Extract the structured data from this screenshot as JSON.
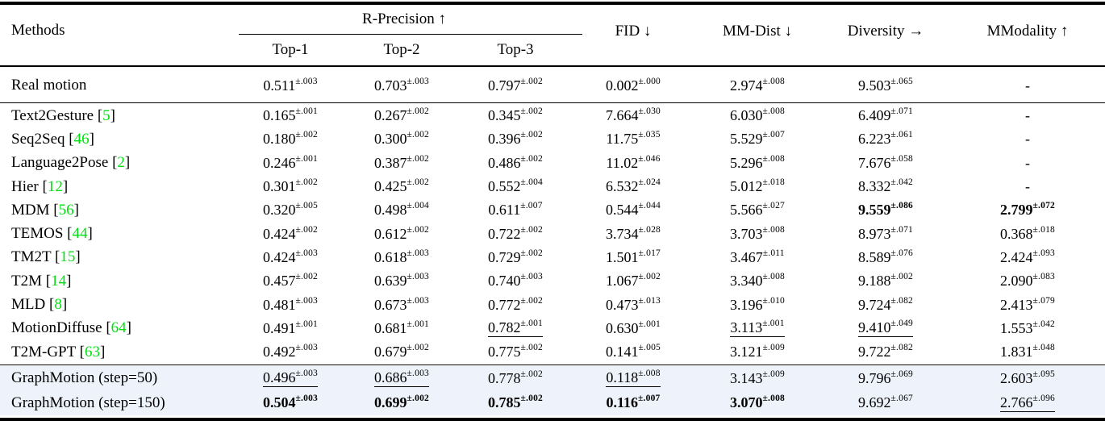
{
  "table": {
    "highlight_bg": "#eef2fa",
    "ref_color": "#00e010",
    "header": {
      "methods_label": "Methods",
      "group_label": "R-Precision ↑",
      "sub_labels": [
        "Top-1",
        "Top-2",
        "Top-3"
      ],
      "metric_labels": [
        "FID ↓",
        "MM-Dist ↓",
        "Diversity →",
        "MModality ↑"
      ]
    },
    "rows": [
      {
        "section": "real",
        "method": "Real motion",
        "ref": null,
        "cells": [
          {
            "v": "0.511",
            "e": "±.003",
            "s": "n"
          },
          {
            "v": "0.703",
            "e": "±.003",
            "s": "n"
          },
          {
            "v": "0.797",
            "e": "±.002",
            "s": "n"
          },
          {
            "v": "0.002",
            "e": "±.000",
            "s": "n"
          },
          {
            "v": "2.974",
            "e": "±.008",
            "s": "n"
          },
          {
            "v": "9.503",
            "e": "±.065",
            "s": "n"
          },
          {
            "v": "-",
            "e": "",
            "s": "n"
          }
        ]
      },
      {
        "section": "baselines",
        "method": "Text2Gesture",
        "ref": "5",
        "cells": [
          {
            "v": "0.165",
            "e": "±.001",
            "s": "n"
          },
          {
            "v": "0.267",
            "e": "±.002",
            "s": "n"
          },
          {
            "v": "0.345",
            "e": "±.002",
            "s": "n"
          },
          {
            "v": "7.664",
            "e": "±.030",
            "s": "n"
          },
          {
            "v": "6.030",
            "e": "±.008",
            "s": "n"
          },
          {
            "v": "6.409",
            "e": "±.071",
            "s": "n"
          },
          {
            "v": "-",
            "e": "",
            "s": "n"
          }
        ]
      },
      {
        "section": "baselines",
        "method": "Seq2Seq",
        "ref": "46",
        "cells": [
          {
            "v": "0.180",
            "e": "±.002",
            "s": "n"
          },
          {
            "v": "0.300",
            "e": "±.002",
            "s": "n"
          },
          {
            "v": "0.396",
            "e": "±.002",
            "s": "n"
          },
          {
            "v": "11.75",
            "e": "±.035",
            "s": "n"
          },
          {
            "v": "5.529",
            "e": "±.007",
            "s": "n"
          },
          {
            "v": "6.223",
            "e": "±.061",
            "s": "n"
          },
          {
            "v": "-",
            "e": "",
            "s": "n"
          }
        ]
      },
      {
        "section": "baselines",
        "method": "Language2Pose",
        "ref": "2",
        "cells": [
          {
            "v": "0.246",
            "e": "±.001",
            "s": "n"
          },
          {
            "v": "0.387",
            "e": "±.002",
            "s": "n"
          },
          {
            "v": "0.486",
            "e": "±.002",
            "s": "n"
          },
          {
            "v": "11.02",
            "e": "±.046",
            "s": "n"
          },
          {
            "v": "5.296",
            "e": "±.008",
            "s": "n"
          },
          {
            "v": "7.676",
            "e": "±.058",
            "s": "n"
          },
          {
            "v": "-",
            "e": "",
            "s": "n"
          }
        ]
      },
      {
        "section": "baselines",
        "method": "Hier",
        "ref": "12",
        "cells": [
          {
            "v": "0.301",
            "e": "±.002",
            "s": "n"
          },
          {
            "v": "0.425",
            "e": "±.002",
            "s": "n"
          },
          {
            "v": "0.552",
            "e": "±.004",
            "s": "n"
          },
          {
            "v": "6.532",
            "e": "±.024",
            "s": "n"
          },
          {
            "v": "5.012",
            "e": "±.018",
            "s": "n"
          },
          {
            "v": "8.332",
            "e": "±.042",
            "s": "n"
          },
          {
            "v": "-",
            "e": "",
            "s": "n"
          }
        ]
      },
      {
        "section": "baselines",
        "method": "MDM",
        "ref": "56",
        "cells": [
          {
            "v": "0.320",
            "e": "±.005",
            "s": "n"
          },
          {
            "v": "0.498",
            "e": "±.004",
            "s": "n"
          },
          {
            "v": "0.611",
            "e": "±.007",
            "s": "n"
          },
          {
            "v": "0.544",
            "e": "±.044",
            "s": "n"
          },
          {
            "v": "5.566",
            "e": "±.027",
            "s": "n"
          },
          {
            "v": "9.559",
            "e": "±.086",
            "s": "b"
          },
          {
            "v": "2.799",
            "e": "±.072",
            "s": "b"
          }
        ]
      },
      {
        "section": "baselines",
        "method": "TEMOS",
        "ref": "44",
        "cells": [
          {
            "v": "0.424",
            "e": "±.002",
            "s": "n"
          },
          {
            "v": "0.612",
            "e": "±.002",
            "s": "n"
          },
          {
            "v": "0.722",
            "e": "±.002",
            "s": "n"
          },
          {
            "v": "3.734",
            "e": "±.028",
            "s": "n"
          },
          {
            "v": "3.703",
            "e": "±.008",
            "s": "n"
          },
          {
            "v": "8.973",
            "e": "±.071",
            "s": "n"
          },
          {
            "v": "0.368",
            "e": "±.018",
            "s": "n"
          }
        ]
      },
      {
        "section": "baselines",
        "method": "TM2T",
        "ref": "15",
        "cells": [
          {
            "v": "0.424",
            "e": "±.003",
            "s": "n"
          },
          {
            "v": "0.618",
            "e": "±.003",
            "s": "n"
          },
          {
            "v": "0.729",
            "e": "±.002",
            "s": "n"
          },
          {
            "v": "1.501",
            "e": "±.017",
            "s": "n"
          },
          {
            "v": "3.467",
            "e": "±.011",
            "s": "n"
          },
          {
            "v": "8.589",
            "e": "±.076",
            "s": "n"
          },
          {
            "v": "2.424",
            "e": "±.093",
            "s": "n"
          }
        ]
      },
      {
        "section": "baselines",
        "method": "T2M",
        "ref": "14",
        "cells": [
          {
            "v": "0.457",
            "e": "±.002",
            "s": "n"
          },
          {
            "v": "0.639",
            "e": "±.003",
            "s": "n"
          },
          {
            "v": "0.740",
            "e": "±.003",
            "s": "n"
          },
          {
            "v": "1.067",
            "e": "±.002",
            "s": "n"
          },
          {
            "v": "3.340",
            "e": "±.008",
            "s": "n"
          },
          {
            "v": "9.188",
            "e": "±.002",
            "s": "n"
          },
          {
            "v": "2.090",
            "e": "±.083",
            "s": "n"
          }
        ]
      },
      {
        "section": "baselines",
        "method": "MLD",
        "ref": "8",
        "cells": [
          {
            "v": "0.481",
            "e": "±.003",
            "s": "n"
          },
          {
            "v": "0.673",
            "e": "±.003",
            "s": "n"
          },
          {
            "v": "0.772",
            "e": "±.002",
            "s": "n"
          },
          {
            "v": "0.473",
            "e": "±.013",
            "s": "n"
          },
          {
            "v": "3.196",
            "e": "±.010",
            "s": "n"
          },
          {
            "v": "9.724",
            "e": "±.082",
            "s": "n"
          },
          {
            "v": "2.413",
            "e": "±.079",
            "s": "n"
          }
        ]
      },
      {
        "section": "baselines",
        "method": "MotionDiffuse",
        "ref": "64",
        "cells": [
          {
            "v": "0.491",
            "e": "±.001",
            "s": "n"
          },
          {
            "v": "0.681",
            "e": "±.001",
            "s": "n"
          },
          {
            "v": "0.782",
            "e": "±.001",
            "s": "u"
          },
          {
            "v": "0.630",
            "e": "±.001",
            "s": "n"
          },
          {
            "v": "3.113",
            "e": "±.001",
            "s": "u"
          },
          {
            "v": "9.410",
            "e": "±.049",
            "s": "u"
          },
          {
            "v": "1.553",
            "e": "±.042",
            "s": "n"
          }
        ]
      },
      {
        "section": "baselines",
        "method": "T2M-GPT",
        "ref": "63",
        "cells": [
          {
            "v": "0.492",
            "e": "±.003",
            "s": "n"
          },
          {
            "v": "0.679",
            "e": "±.002",
            "s": "n"
          },
          {
            "v": "0.775",
            "e": "±.002",
            "s": "n"
          },
          {
            "v": "0.141",
            "e": "±.005",
            "s": "n"
          },
          {
            "v": "3.121",
            "e": "±.009",
            "s": "n"
          },
          {
            "v": "9.722",
            "e": "±.082",
            "s": "n"
          },
          {
            "v": "1.831",
            "e": "±.048",
            "s": "n"
          }
        ]
      },
      {
        "section": "ours",
        "method": "GraphMotion (step=50)",
        "ref": null,
        "cells": [
          {
            "v": "0.496",
            "e": "±.003",
            "s": "u"
          },
          {
            "v": "0.686",
            "e": "±.003",
            "s": "u"
          },
          {
            "v": "0.778",
            "e": "±.002",
            "s": "n"
          },
          {
            "v": "0.118",
            "e": "±.008",
            "s": "u"
          },
          {
            "v": "3.143",
            "e": "±.009",
            "s": "n"
          },
          {
            "v": "9.796",
            "e": "±.069",
            "s": "n"
          },
          {
            "v": "2.603",
            "e": "±.095",
            "s": "n"
          }
        ]
      },
      {
        "section": "ours",
        "method": "GraphMotion (step=150)",
        "ref": null,
        "cells": [
          {
            "v": "0.504",
            "e": "±.003",
            "s": "b"
          },
          {
            "v": "0.699",
            "e": "±.002",
            "s": "b"
          },
          {
            "v": "0.785",
            "e": "±.002",
            "s": "b"
          },
          {
            "v": "0.116",
            "e": "±.007",
            "s": "b"
          },
          {
            "v": "3.070",
            "e": "±.008",
            "s": "b"
          },
          {
            "v": "9.692",
            "e": "±.067",
            "s": "n"
          },
          {
            "v": "2.766",
            "e": "±.096",
            "s": "u"
          }
        ]
      }
    ]
  }
}
